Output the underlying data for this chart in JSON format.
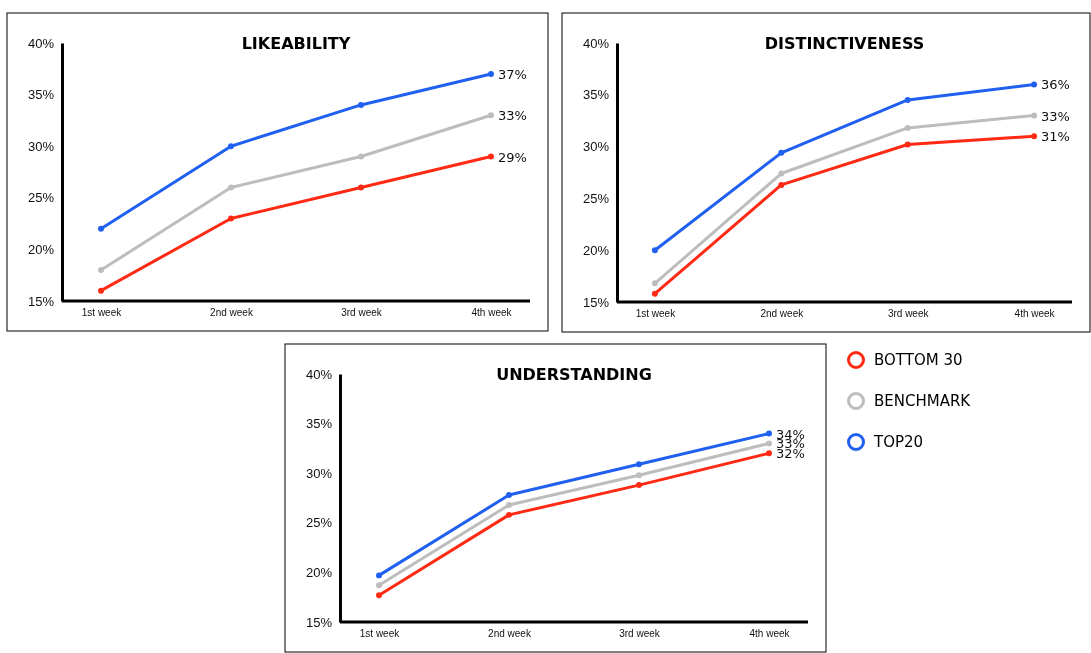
{
  "chart_data": [
    {
      "type": "line",
      "title": "LIKEABILITY",
      "categories": [
        "1st week",
        "2nd week",
        "3rd week",
        "4th week"
      ],
      "ylim": [
        15,
        40
      ],
      "yticks": [
        {
          "value": 15,
          "label": "15%"
        },
        {
          "value": 20,
          "label": "20%"
        },
        {
          "value": 25,
          "label": "25%"
        },
        {
          "value": 30,
          "label": "30%"
        },
        {
          "value": 35,
          "label": "35%"
        },
        {
          "value": 40,
          "label": "40%"
        }
      ],
      "marker": "circle",
      "legend": false,
      "series": [
        {
          "color": "#ff2a14",
          "values": [
            16,
            23,
            26,
            29
          ],
          "value_labels": [
            null,
            null,
            null,
            "29%"
          ]
        },
        {
          "color": "#bdbdbd",
          "values": [
            18,
            26,
            29,
            33
          ],
          "value_labels": [
            null,
            null,
            null,
            "33%"
          ]
        },
        {
          "color": "#2060f0",
          "values": [
            22,
            30,
            34,
            37
          ],
          "value_labels": [
            null,
            null,
            null,
            "37%"
          ]
        }
      ]
    },
    {
      "type": "line",
      "title": "DISTINCTIVENESS",
      "categories": [
        "1st week",
        "2nd week",
        "3rd week",
        "4th week"
      ],
      "ylim": [
        15,
        40
      ],
      "yticks": [
        {
          "value": 15,
          "label": "15%"
        },
        {
          "value": 20,
          "label": "20%"
        },
        {
          "value": 25,
          "label": "25%"
        },
        {
          "value": 30,
          "label": "30%"
        },
        {
          "value": 35,
          "label": "35%"
        },
        {
          "value": 40,
          "label": "40%"
        }
      ],
      "marker": "circle",
      "legend": false,
      "series": [
        {
          "color": "#ff2a14",
          "values": [
            15.8,
            26.3,
            30.2,
            31
          ],
          "value_labels": [
            null,
            null,
            null,
            "31%"
          ]
        },
        {
          "color": "#bdbdbd",
          "values": [
            16.8,
            27.4,
            31.8,
            33
          ],
          "value_labels": [
            null,
            null,
            null,
            "33%"
          ]
        },
        {
          "color": "#2060f0",
          "values": [
            20,
            29.4,
            34.5,
            36
          ],
          "value_labels": [
            null,
            null,
            null,
            "36%"
          ]
        }
      ]
    },
    {
      "type": "line",
      "title": "UNDERSTANDING",
      "categories": [
        "1st week",
        "2nd week",
        "3rd week",
        "4th week"
      ],
      "ylim": [
        15,
        40
      ],
      "yticks": [
        {
          "value": 15,
          "label": "15%"
        },
        {
          "value": 20,
          "label": "20%"
        },
        {
          "value": 25,
          "label": "25%"
        },
        {
          "value": 30,
          "label": "30%"
        },
        {
          "value": 35,
          "label": "35%"
        },
        {
          "value": 40,
          "label": "40%"
        }
      ],
      "marker": "circle",
      "legend": "right",
      "series": [
        {
          "name": "BOTTOM 30",
          "color": "#ff2a14",
          "values": [
            17.7,
            25.8,
            28.8,
            32
          ],
          "value_labels": [
            null,
            null,
            null,
            "32%"
          ]
        },
        {
          "name": "BENCHMARK",
          "color": "#bdbdbd",
          "values": [
            18.7,
            26.8,
            29.8,
            33
          ],
          "value_labels": [
            null,
            null,
            null,
            "33%"
          ]
        },
        {
          "name": "TOP20",
          "color": "#2060f0",
          "values": [
            19.7,
            27.8,
            30.9,
            34
          ],
          "value_labels": [
            null,
            null,
            null,
            "34%"
          ]
        }
      ]
    }
  ]
}
